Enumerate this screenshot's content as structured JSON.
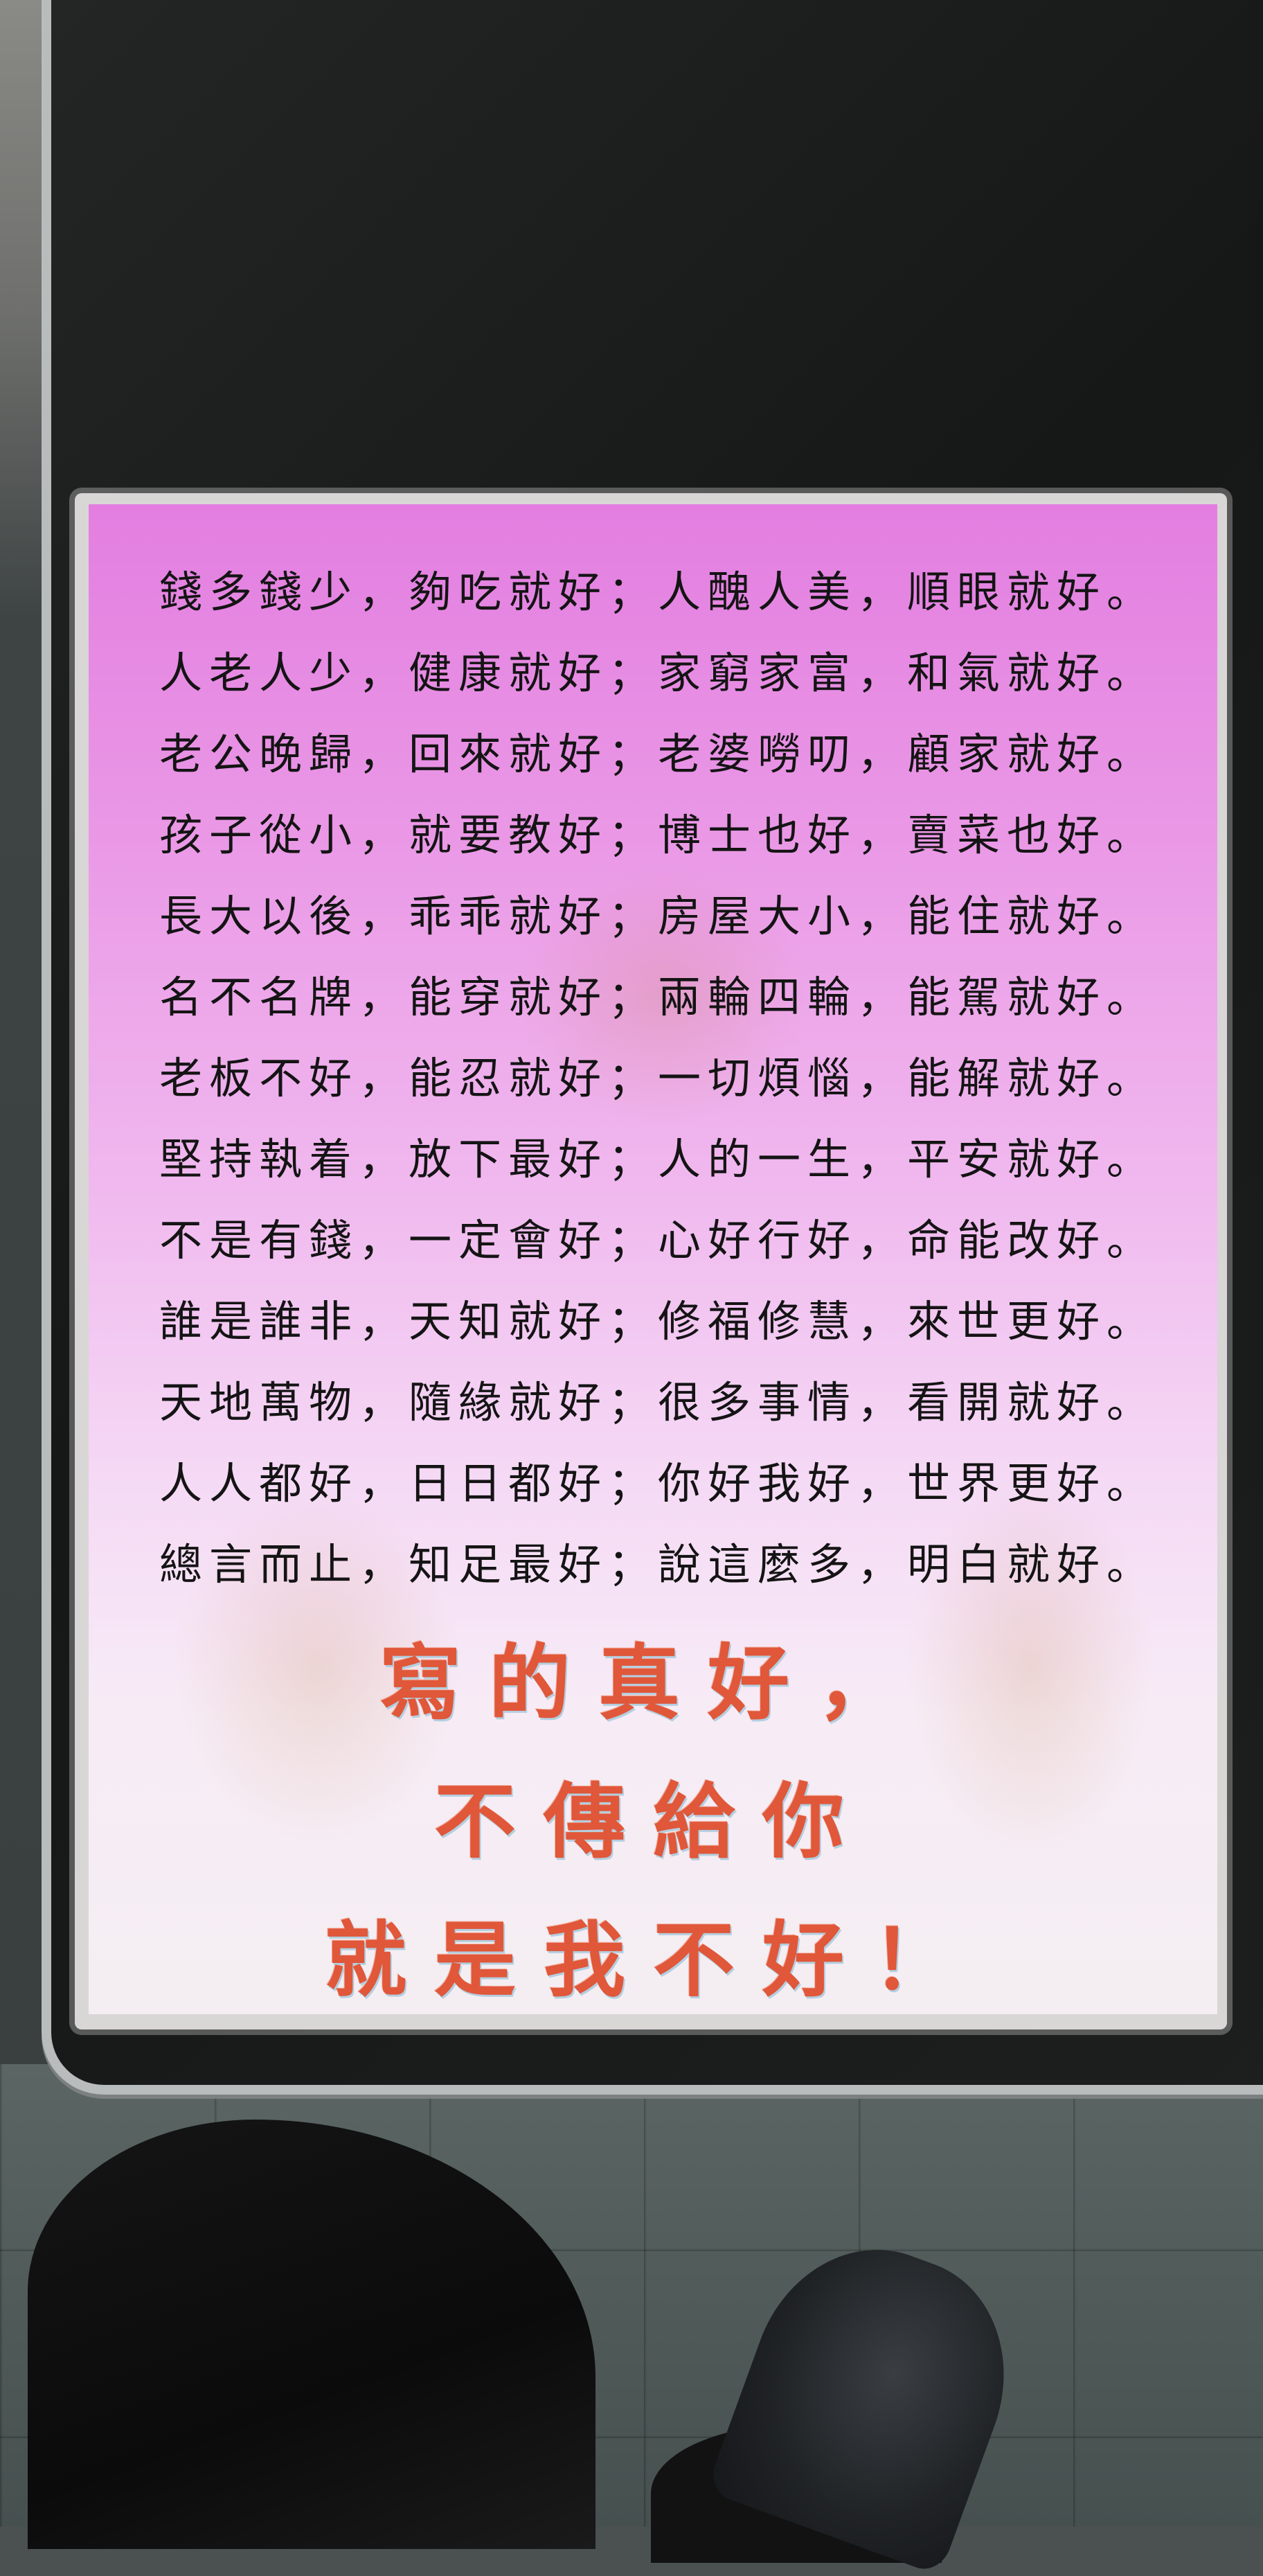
{
  "poster": {
    "lines": [
      "錢多錢少，夠吃就好；人醜人美，順眼就好。",
      "人老人少，健康就好；家窮家富，和氣就好。",
      "老公晚歸，回來就好；老婆嘮叨，顧家就好。",
      "孩子從小，就要教好；博士也好，賣菜也好。",
      "長大以後，乖乖就好；房屋大小，能住就好。",
      "名不名牌，能穿就好；兩輪四輪，能駕就好。",
      "老板不好，能忍就好；一切煩惱，能解就好。",
      "堅持執着，放下最好；人的一生，平安就好。",
      "不是有錢，一定會好；心好行好，命能改好。",
      "誰是誰非，天知就好；修福修慧，來世更好。",
      "天地萬物，隨緣就好；很多事情，看開就好。",
      "人人都好，日日都好；你好我好，世界更好。",
      "總言而止，知足最好；說這麼多，明白就好。"
    ],
    "closing": [
      "寫的真好，",
      "不傳給你",
      "就是我不好！"
    ]
  },
  "colors": {
    "text": "#141414",
    "closing_red": "#e0573a",
    "poster_top": "#e37ee0",
    "poster_bottom": "#f4eef2"
  }
}
